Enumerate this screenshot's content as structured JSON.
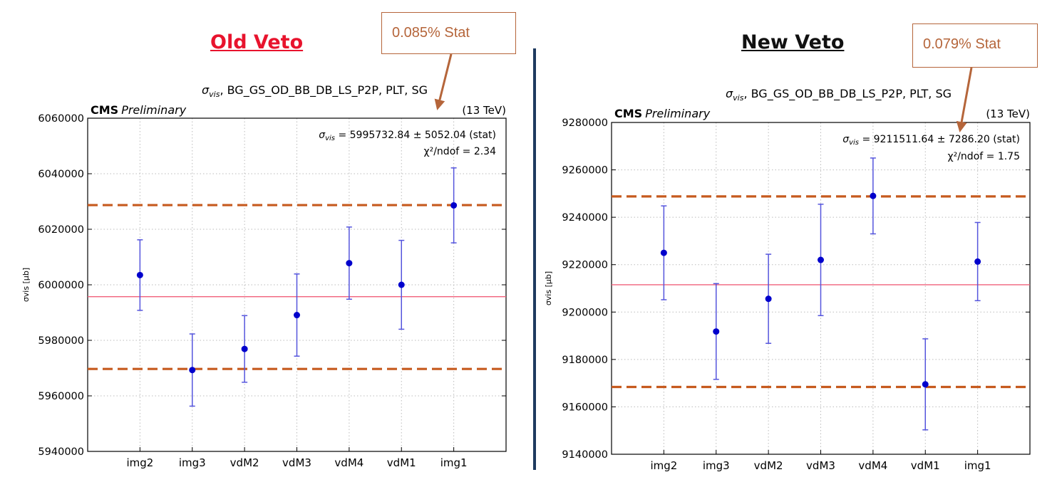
{
  "headings": {
    "left": "Old Veto",
    "right": "New Veto"
  },
  "callouts": {
    "left": "0.085% Stat",
    "right": "0.079% Stat"
  },
  "chart_data": [
    {
      "type": "scatter",
      "title": "σvis, BG_GS_OD_BB_DB_LS_P2P, PLT, SG",
      "title_symbol": "σ",
      "title_sub": "vis",
      "title_rest": ", BG_GS_OD_BB_DB_LS_P2P, PLT, SG",
      "cms_label": "CMS",
      "cms_sub": "Preliminary",
      "energy": "(13 TeV)",
      "ylabel": "σvis [μb]",
      "fit_result_text": " = 5995732.84 ± 5052.04 (stat)",
      "chi2_text": "χ²/ndof = 2.34",
      "categories": [
        "img2",
        "img3",
        "vdM2",
        "vdM3",
        "vdM4",
        "vdM1",
        "img1"
      ],
      "values": [
        6003500,
        5969300,
        5976900,
        5989100,
        6007800,
        6000000,
        6028600
      ],
      "errors": [
        12700,
        13000,
        12000,
        14800,
        13000,
        16000,
        13500
      ],
      "fit_value": 5995732.84,
      "band_lines": [
        6028700,
        5969700
      ],
      "ylim": [
        5940000,
        6060000
      ],
      "yticks": [
        5940000,
        5960000,
        5980000,
        6000000,
        6020000,
        6040000,
        6060000
      ],
      "grid": true,
      "colors": {
        "points": "#0000cc",
        "errorbars": "#5555dd",
        "fit": "#f0607a",
        "band": "#c65a1e"
      }
    },
    {
      "type": "scatter",
      "title": "σvis, BG_GS_OD_BB_DB_LS_P2P, PLT, SG",
      "title_symbol": "σ",
      "title_sub": "vis",
      "title_rest": ", BG_GS_OD_BB_DB_LS_P2P, PLT, SG",
      "cms_label": "CMS",
      "cms_sub": "Preliminary",
      "energy": "(13 TeV)",
      "ylabel": "σvis [μb]",
      "fit_result_text": " = 9211511.64 ± 7286.20 (stat)",
      "chi2_text": "χ²/ndof = 1.75",
      "categories": [
        "img2",
        "img3",
        "vdM2",
        "vdM3",
        "vdM4",
        "vdM1",
        "img1"
      ],
      "values": [
        9225000,
        9191800,
        9205600,
        9222000,
        9249000,
        9169500,
        9221300
      ],
      "errors": [
        19800,
        20200,
        18800,
        23500,
        16000,
        19200,
        16500
      ],
      "fit_value": 9211511.64,
      "band_lines": [
        9248800,
        9168400
      ],
      "ylim": [
        9140000,
        9280000
      ],
      "yticks": [
        9140000,
        9160000,
        9180000,
        9200000,
        9220000,
        9240000,
        9260000,
        9280000
      ],
      "grid": true,
      "colors": {
        "points": "#0000cc",
        "errorbars": "#5555dd",
        "fit": "#f0607a",
        "band": "#c65a1e"
      }
    }
  ]
}
